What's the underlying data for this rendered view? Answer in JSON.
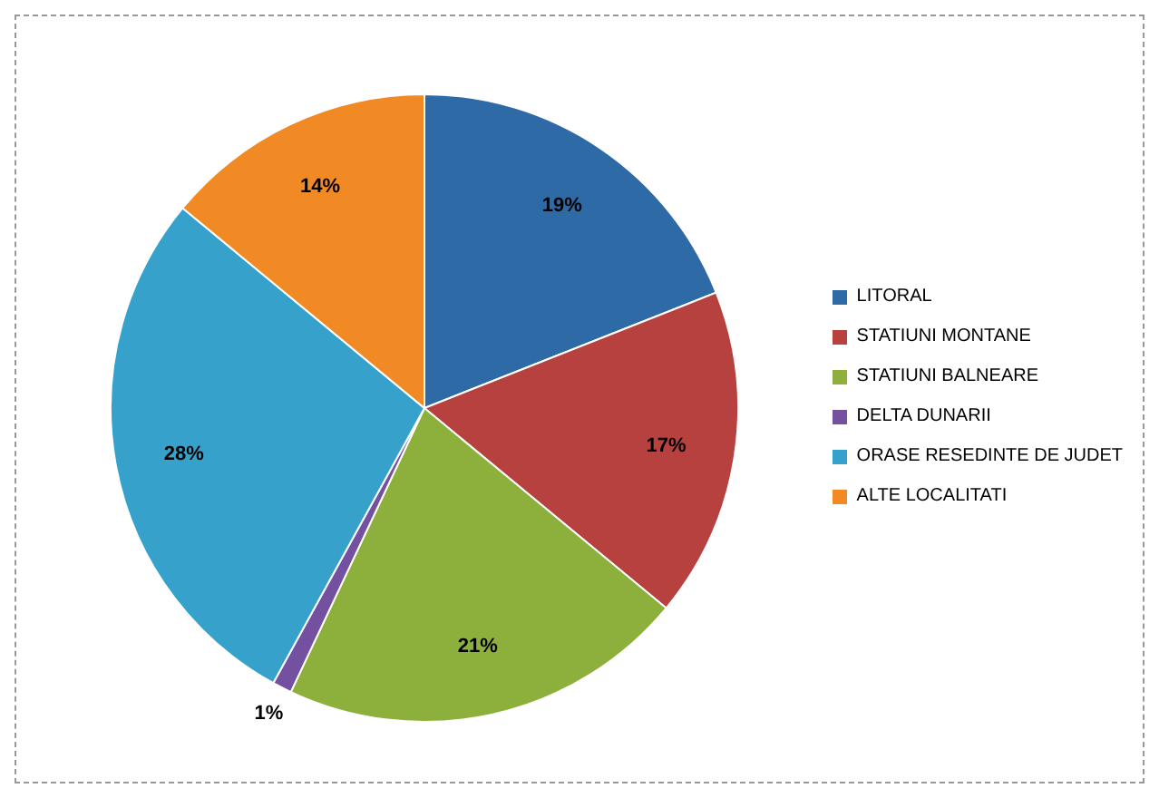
{
  "chart_data": {
    "type": "pie",
    "categories": [
      "LITORAL",
      "STATIUNI MONTANE",
      "STATIUNI BALNEARE",
      "DELTA DUNARII",
      "ORASE RESEDINTE DE JUDET",
      "ALTE LOCALITATI"
    ],
    "values": [
      19,
      17,
      21,
      1,
      28,
      14
    ],
    "colors": [
      "#2e6aa6",
      "#b7413e",
      "#8cb03b",
      "#7450a0",
      "#36a2cc",
      "#f18a24"
    ],
    "value_labels": [
      "19%",
      "17%",
      "21%",
      "1%",
      "28%",
      "14%"
    ],
    "legend": "right"
  }
}
